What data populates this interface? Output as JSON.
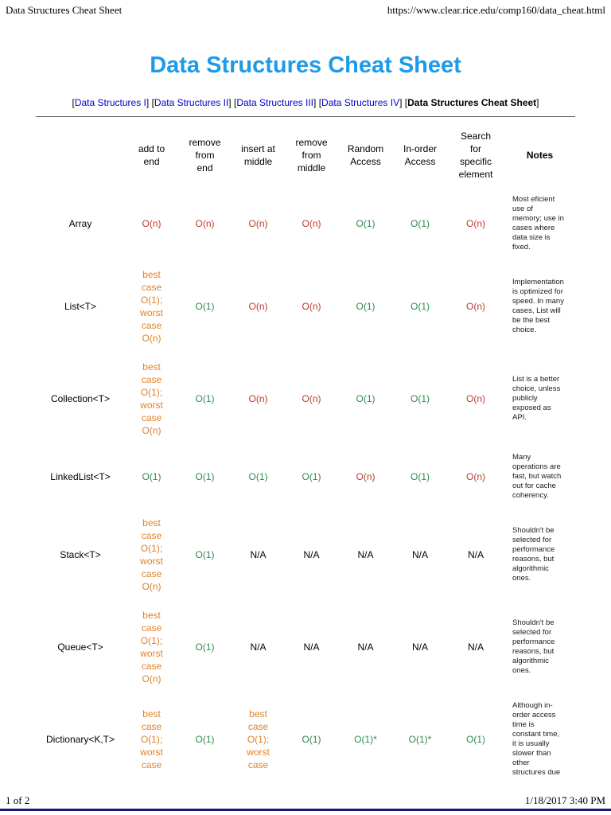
{
  "page": {
    "print_header": {
      "left": "Data Structures Cheat Sheet",
      "right": "https://www.clear.rice.edu/comp160/data_cheat.html"
    },
    "print_footer": {
      "left": "1 of 2",
      "right": "1/18/2017 3:40 PM"
    },
    "title": "Data Structures Cheat Sheet",
    "nav": [
      {
        "label": "Data Structures I"
      },
      {
        "label": "Data Structures II"
      },
      {
        "label": "Data Structures III"
      },
      {
        "label": "Data Structures IV"
      },
      {
        "label": "Data Structures Cheat Sheet",
        "current": true
      }
    ]
  },
  "colors": {
    "title": "#1e9ae8",
    "link": "#0000cc",
    "good": "#2e8b4f",
    "bad": "#c0392b",
    "mixed": "#e08227",
    "na": "#000000",
    "footer_rule": "#191970"
  },
  "table": {
    "headers": [
      "",
      "add to\nend",
      "remove\nfrom\nend",
      "insert at\nmiddle",
      "remove\nfrom\nmiddle",
      "Random\nAccess",
      "In-order\nAccess",
      "Search\nfor\nspecific\nelement",
      "Notes"
    ],
    "rows": [
      {
        "label": "Array",
        "cells": [
          {
            "text": "O(n)",
            "tone": "bad"
          },
          {
            "text": "O(n)",
            "tone": "bad"
          },
          {
            "text": "O(n)",
            "tone": "bad"
          },
          {
            "text": "O(n)",
            "tone": "bad"
          },
          {
            "text": "O(1)",
            "tone": "good"
          },
          {
            "text": "O(1)",
            "tone": "good"
          },
          {
            "text": "O(n)",
            "tone": "bad"
          }
        ],
        "notes": "Most eficient use of memory; use in cases where data size is fixed."
      },
      {
        "label": "List<T>",
        "cells": [
          {
            "text": "best case O(1); worst case O(n)",
            "tone": "mixed"
          },
          {
            "text": "O(1)",
            "tone": "good"
          },
          {
            "text": "O(n)",
            "tone": "bad"
          },
          {
            "text": "O(n)",
            "tone": "bad"
          },
          {
            "text": "O(1)",
            "tone": "good"
          },
          {
            "text": "O(1)",
            "tone": "good"
          },
          {
            "text": "O(n)",
            "tone": "bad"
          }
        ],
        "notes": "Implementation is optimized for speed. In many cases, List will be the best choice."
      },
      {
        "label": "Collection<T>",
        "cells": [
          {
            "text": "best case O(1); worst case O(n)",
            "tone": "mixed"
          },
          {
            "text": "O(1)",
            "tone": "good"
          },
          {
            "text": "O(n)",
            "tone": "bad"
          },
          {
            "text": "O(n)",
            "tone": "bad"
          },
          {
            "text": "O(1)",
            "tone": "good"
          },
          {
            "text": "O(1)",
            "tone": "good"
          },
          {
            "text": "O(n)",
            "tone": "bad"
          }
        ],
        "notes": "List is a better choice, unless publicly exposed as API."
      },
      {
        "label": "LinkedList<T>",
        "cells": [
          {
            "text": "O(1)",
            "tone": "good"
          },
          {
            "text": "O(1)",
            "tone": "good"
          },
          {
            "text": "O(1)",
            "tone": "good"
          },
          {
            "text": "O(1)",
            "tone": "good"
          },
          {
            "text": "O(n)",
            "tone": "bad"
          },
          {
            "text": "O(1)",
            "tone": "good"
          },
          {
            "text": "O(n)",
            "tone": "bad"
          }
        ],
        "notes": "Many operations are fast, but watch out for cache coherency."
      },
      {
        "label": "Stack<T>",
        "cells": [
          {
            "text": "best case O(1); worst case O(n)",
            "tone": "mixed"
          },
          {
            "text": "O(1)",
            "tone": "good"
          },
          {
            "text": "N/A",
            "tone": "na"
          },
          {
            "text": "N/A",
            "tone": "na"
          },
          {
            "text": "N/A",
            "tone": "na"
          },
          {
            "text": "N/A",
            "tone": "na"
          },
          {
            "text": "N/A",
            "tone": "na"
          }
        ],
        "notes": "Shouldn't be selected for performance reasons, but algorithmic ones."
      },
      {
        "label": "Queue<T>",
        "cells": [
          {
            "text": "best case O(1); worst case O(n)",
            "tone": "mixed"
          },
          {
            "text": "O(1)",
            "tone": "good"
          },
          {
            "text": "N/A",
            "tone": "na"
          },
          {
            "text": "N/A",
            "tone": "na"
          },
          {
            "text": "N/A",
            "tone": "na"
          },
          {
            "text": "N/A",
            "tone": "na"
          },
          {
            "text": "N/A",
            "tone": "na"
          }
        ],
        "notes": "Shouldn't be selected for performance reasons, but algorithmic ones."
      },
      {
        "label": "Dictionary<K,T>",
        "cells": [
          {
            "text": "best case O(1); worst case",
            "tone": "mixed"
          },
          {
            "text": "O(1)",
            "tone": "good"
          },
          {
            "text": "best case O(1); worst case",
            "tone": "mixed"
          },
          {
            "text": "O(1)",
            "tone": "good"
          },
          {
            "text": "O(1)*",
            "tone": "good"
          },
          {
            "text": "O(1)*",
            "tone": "good"
          },
          {
            "text": "O(1)",
            "tone": "good"
          }
        ],
        "notes": "Although in-order access time is constant time, it is usually slower than other structures due"
      }
    ]
  }
}
